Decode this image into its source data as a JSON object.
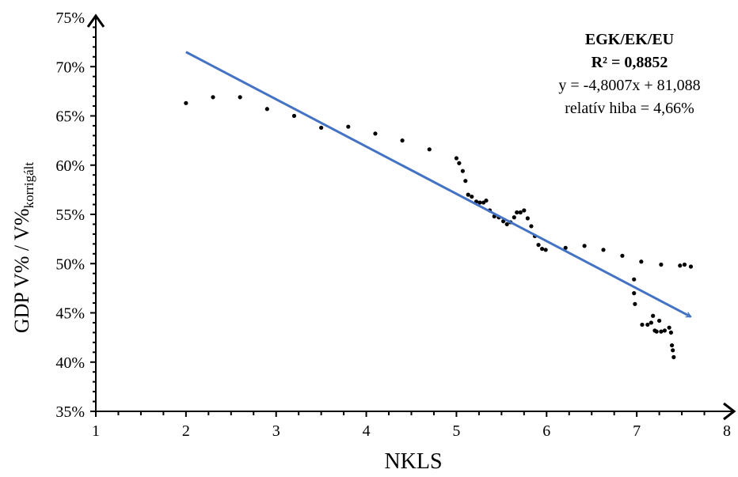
{
  "chart_data": {
    "type": "scatter",
    "xlabel": "NKLS",
    "ylabel_main": "GDP V% / V%",
    "ylabel_sub": "korrigált",
    "xlim": [
      1,
      8
    ],
    "ylim": [
      35,
      75
    ],
    "x_ticks": [
      1,
      2,
      3,
      4,
      5,
      6,
      7,
      8
    ],
    "x_tick_labels": [
      "1",
      "2",
      "3",
      "4",
      "5",
      "6",
      "7",
      "8"
    ],
    "y_ticks": [
      35,
      40,
      45,
      50,
      55,
      60,
      65,
      70,
      75
    ],
    "y_tick_labels": [
      "35%",
      "40%",
      "45%",
      "50%",
      "55%",
      "60%",
      "65%",
      "70%",
      "75%"
    ],
    "grid": false,
    "annotation": {
      "line1": "EGK/EK/EU",
      "line2": "R² = 0,8852",
      "line3": "y = -4,8007x + 81,088",
      "line4": "relatív hiba = 4,66%"
    },
    "trendline": {
      "slope": -4.8007,
      "intercept": 81.088,
      "x_start": 2.0,
      "x_end": 7.6,
      "color": "#4472C4"
    },
    "point_color": "#000000",
    "series": [
      {
        "x": [
          2.0,
          2.3,
          2.6,
          2.9,
          3.2,
          3.5,
          3.8,
          4.1,
          4.4,
          4.7,
          5.0,
          5.03,
          5.07,
          5.1,
          5.13,
          5.17,
          5.22,
          5.26,
          5.3,
          5.33,
          5.37,
          5.42,
          5.47,
          5.52,
          5.56,
          5.6,
          5.64,
          5.67,
          5.71,
          5.75,
          5.79,
          5.83,
          5.87,
          5.91,
          5.95,
          5.99,
          6.21,
          6.42,
          6.63,
          6.84,
          7.05,
          7.27,
          7.48,
          7.53,
          7.6,
          6.97,
          6.97,
          6.98,
          7.06,
          7.12,
          7.16,
          7.18,
          7.2,
          7.22,
          7.25,
          7.27,
          7.31,
          7.36,
          7.38,
          7.39,
          7.4,
          7.41
        ],
        "y": [
          66.3,
          66.9,
          66.9,
          65.7,
          65.0,
          63.8,
          63.9,
          63.2,
          62.5,
          61.6,
          60.7,
          60.2,
          59.4,
          58.4,
          57.0,
          56.8,
          56.3,
          56.2,
          56.2,
          56.4,
          55.4,
          54.8,
          54.7,
          54.3,
          54.0,
          54.2,
          54.7,
          55.2,
          55.2,
          55.4,
          54.6,
          53.8,
          52.8,
          51.9,
          51.5,
          51.4,
          51.6,
          51.8,
          51.4,
          50.8,
          50.2,
          49.9,
          49.8,
          49.9,
          49.7,
          48.4,
          47.0,
          45.9,
          43.8,
          43.8,
          44.0,
          44.7,
          43.2,
          43.1,
          44.2,
          43.1,
          43.2,
          43.5,
          43.0,
          41.7,
          41.2,
          40.5
        ]
      }
    ]
  }
}
